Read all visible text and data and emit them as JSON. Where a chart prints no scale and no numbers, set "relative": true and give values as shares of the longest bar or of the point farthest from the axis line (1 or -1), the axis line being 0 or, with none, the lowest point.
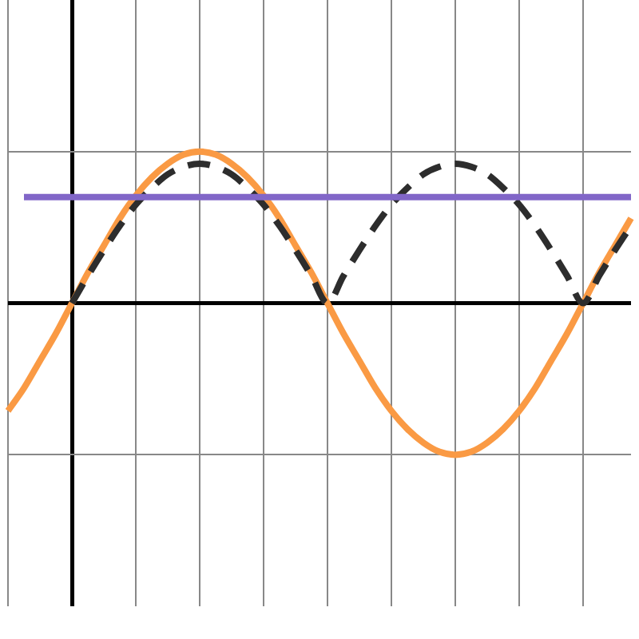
{
  "chart_data": {
    "type": "line",
    "relative": true,
    "grid": true,
    "legend": false,
    "marker": "none",
    "categories": [
      null,
      null,
      null,
      null,
      null,
      null,
      null,
      null,
      null,
      null,
      null,
      null,
      null,
      null,
      null,
      null,
      null,
      null,
      null,
      null,
      null,
      null,
      null,
      null,
      null,
      null,
      null,
      null,
      null,
      null,
      null,
      null,
      null,
      null,
      null,
      null,
      null,
      null,
      null,
      null
    ],
    "series": [
      {
        "color": "#fa9a44",
        "line_style": "solid",
        "values": [
          -0.71,
          -0.56,
          -0.38,
          -0.2,
          0,
          0.2,
          0.38,
          0.56,
          0.71,
          0.83,
          0.92,
          0.98,
          1,
          0.98,
          0.92,
          0.83,
          0.71,
          0.56,
          0.38,
          0.2,
          0,
          -0.2,
          -0.38,
          -0.56,
          -0.71,
          -0.83,
          -0.92,
          -0.98,
          -1,
          -0.98,
          -0.92,
          -0.83,
          -0.71,
          -0.56,
          -0.38,
          -0.2,
          0,
          0.2,
          0.38,
          0.56
        ]
      },
      {
        "color": "#2d2d2d",
        "line_style": "dashed",
        "values": [
          null,
          null,
          null,
          null,
          0,
          0.18,
          0.35,
          0.51,
          0.65,
          0.76,
          0.85,
          0.9,
          0.92,
          0.9,
          0.85,
          0.76,
          0.65,
          0.51,
          0.35,
          0.18,
          0,
          0.18,
          0.35,
          0.51,
          0.65,
          0.76,
          0.85,
          0.9,
          0.92,
          0.9,
          0.85,
          0.76,
          0.65,
          0.51,
          0.35,
          0.18,
          0,
          0.18,
          0.35,
          0.51
        ]
      },
      {
        "color": "#8166c8",
        "line_style": "solid",
        "values": [
          null,
          0.7,
          0.7,
          0.7,
          0.7,
          0.7,
          0.7,
          0.7,
          0.7,
          0.7,
          0.7,
          0.7,
          0.7,
          0.7,
          0.7,
          0.7,
          0.7,
          0.7,
          0.7,
          0.7,
          0.7,
          0.7,
          0.7,
          0.7,
          0.7,
          0.7,
          0.7,
          0.7,
          0.7,
          0.7,
          0.7,
          0.7,
          0.7,
          0.7,
          0.7,
          0.7,
          0.7,
          0.7,
          0.7,
          0.7
        ]
      }
    ]
  }
}
